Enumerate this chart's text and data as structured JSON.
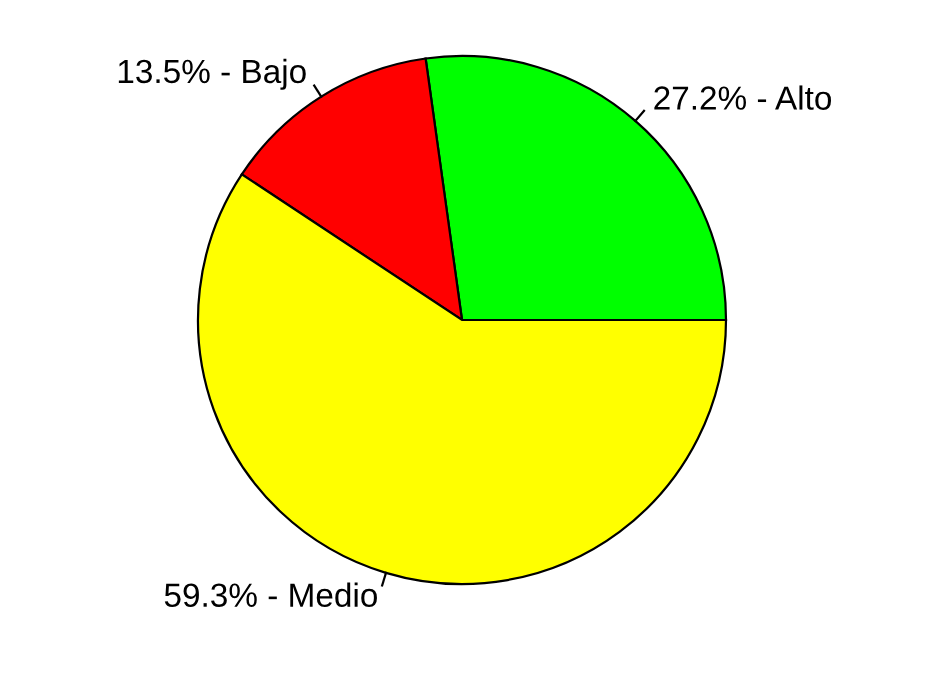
{
  "chart_data": {
    "type": "pie",
    "categories": [
      "27.2% - Alto",
      "13.5% - Bajo",
      "59.3% - Medio"
    ],
    "values": [
      27.2,
      13.5,
      59.3
    ],
    "colors": [
      "#00ff00",
      "#ff0000",
      "#ffff00"
    ]
  }
}
